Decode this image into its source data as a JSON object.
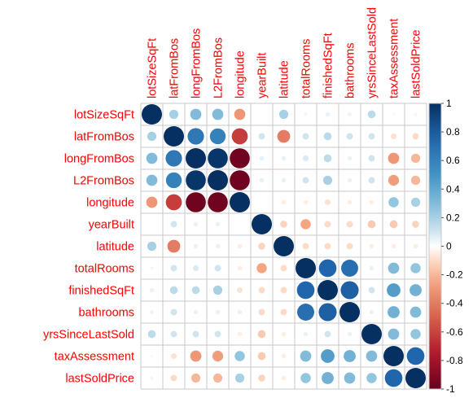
{
  "chart_data": {
    "type": "heatmap",
    "subtype": "correlation circle plot",
    "variables": [
      "lotSizeSqFt",
      "latFromBos",
      "longFromBos",
      "L2FromBos",
      "longitude",
      "yearBuilt",
      "latitude",
      "totalRooms",
      "finishedSqFt",
      "bathrooms",
      "yrsSinceLastSold",
      "taxAssessment",
      "lastSoldPrice"
    ],
    "matrix": [
      [
        1.0,
        0.2,
        0.3,
        0.3,
        -0.3,
        0.0,
        0.2,
        0.03,
        0.05,
        0.04,
        0.15,
        0.02,
        0.03
      ],
      [
        0.2,
        1.0,
        0.65,
        0.6,
        -0.62,
        0.1,
        -0.4,
        0.1,
        0.15,
        0.1,
        0.1,
        -0.08,
        -0.1
      ],
      [
        0.3,
        0.65,
        1.0,
        0.97,
        -0.97,
        0.05,
        0.05,
        0.08,
        0.15,
        0.05,
        0.1,
        -0.3,
        -0.2
      ],
      [
        0.3,
        0.6,
        0.97,
        1.0,
        -0.97,
        0.05,
        0.05,
        0.1,
        0.2,
        0.05,
        0.1,
        -0.28,
        -0.2
      ],
      [
        -0.3,
        -0.62,
        -0.97,
        -0.97,
        1.0,
        0.0,
        -0.05,
        -0.05,
        -0.08,
        -0.05,
        -0.05,
        0.25,
        0.2
      ],
      [
        0.0,
        0.1,
        0.05,
        0.05,
        0.0,
        1.0,
        -0.12,
        -0.25,
        -0.1,
        -0.1,
        -0.15,
        -0.15,
        -0.12
      ],
      [
        0.2,
        -0.4,
        0.05,
        0.05,
        -0.05,
        -0.12,
        1.0,
        -0.1,
        -0.1,
        -0.1,
        -0.05,
        -0.05,
        -0.05
      ],
      [
        0.03,
        0.1,
        0.08,
        0.1,
        -0.05,
        -0.25,
        -0.1,
        1.0,
        0.75,
        0.7,
        0.05,
        0.3,
        0.25
      ],
      [
        0.05,
        0.15,
        0.15,
        0.2,
        -0.08,
        -0.1,
        -0.1,
        0.75,
        1.0,
        0.78,
        0.1,
        0.45,
        0.35
      ],
      [
        0.04,
        0.1,
        0.05,
        0.05,
        -0.05,
        -0.1,
        -0.1,
        0.7,
        0.78,
        1.0,
        0.05,
        0.35,
        0.3
      ],
      [
        0.15,
        0.1,
        0.1,
        0.1,
        -0.05,
        -0.15,
        -0.05,
        0.05,
        0.1,
        0.05,
        1.0,
        0.3,
        0.25
      ],
      [
        0.02,
        -0.08,
        -0.3,
        -0.28,
        0.25,
        -0.15,
        -0.05,
        0.3,
        0.45,
        0.35,
        0.3,
        1.0,
        0.75
      ],
      [
        0.03,
        -0.1,
        -0.2,
        -0.2,
        0.2,
        -0.12,
        -0.05,
        0.25,
        0.35,
        0.3,
        0.25,
        0.75,
        1.0
      ]
    ],
    "color_scale": {
      "range": [
        -1,
        1
      ],
      "ticks": [
        "1",
        "0.8",
        "0.6",
        "0.4",
        "0.2",
        "0",
        "-0.2",
        "-0.4",
        "-0.6",
        "-0.8",
        "-1"
      ],
      "low_color": "#67001f",
      "mid_color": "#ffffff",
      "high_color": "#053061"
    },
    "label_color": "#ff0000",
    "grid": true,
    "legend": "right"
  }
}
